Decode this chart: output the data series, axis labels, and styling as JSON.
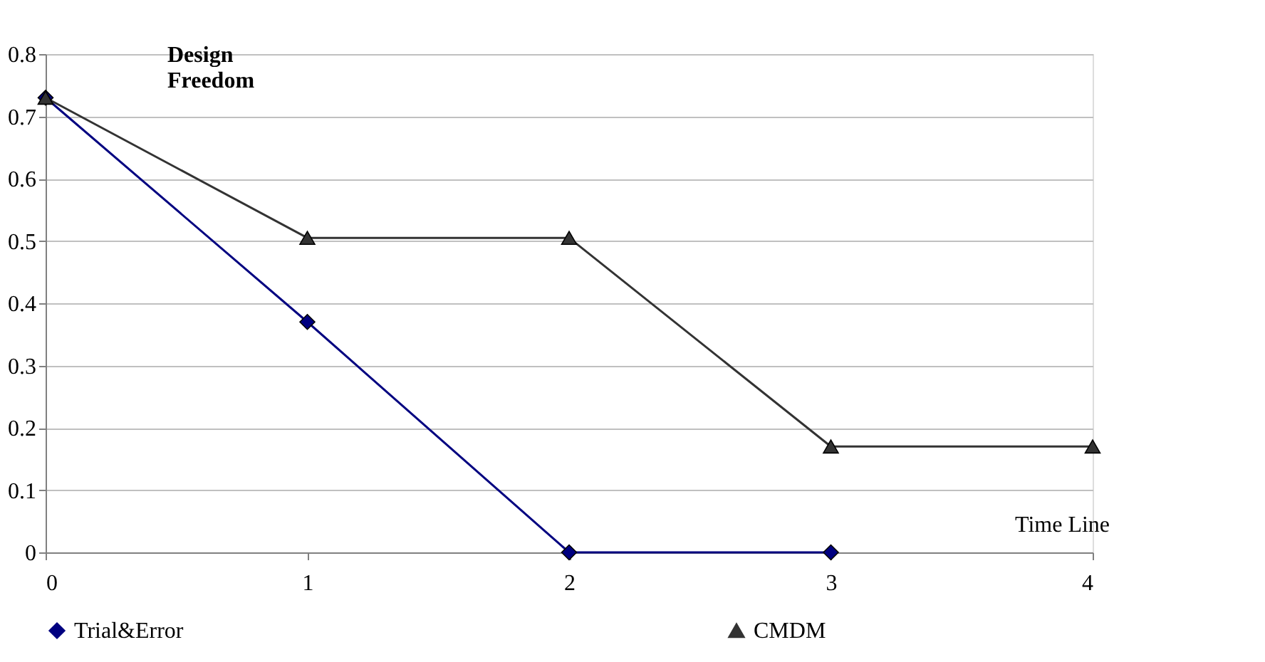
{
  "chart_data": {
    "type": "line",
    "ylabel": "Design Freedom",
    "xlabel": "Time Line",
    "x": [
      0,
      1,
      2,
      3,
      4
    ],
    "series": [
      {
        "name": "Trial&Error",
        "color": "#000080",
        "marker": "diamond",
        "x": [
          0,
          1,
          2,
          3
        ],
        "values": [
          0.73,
          0.37,
          0,
          0
        ]
      },
      {
        "name": "CMDM",
        "color": "#333333",
        "marker": "triangle",
        "values": [
          0.73,
          0.505,
          0.505,
          0.17,
          0.17
        ]
      }
    ],
    "xlim": [
      0,
      4
    ],
    "xticks": [
      0,
      1,
      2,
      3,
      4
    ],
    "ylim": [
      0,
      0.8
    ],
    "yticks": [
      0,
      0.1,
      0.2,
      0.3,
      0.4,
      0.5,
      0.6,
      0.7,
      0.8
    ],
    "grid": "y",
    "legend": "bottom",
    "line_style": "solid"
  }
}
